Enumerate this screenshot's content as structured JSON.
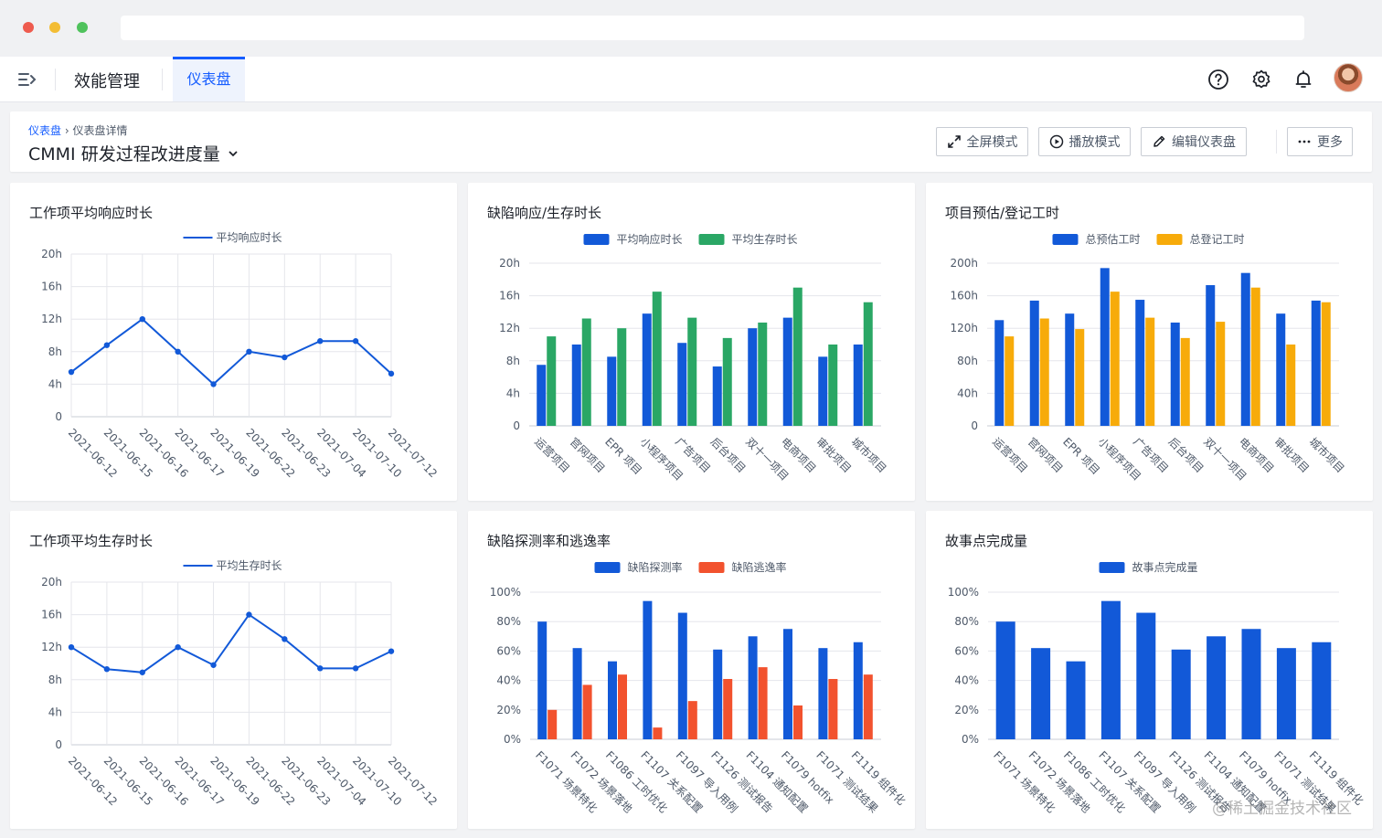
{
  "header": {
    "app_title": "效能管理",
    "active_tab": "仪表盘"
  },
  "breadcrumb": {
    "root": "仪表盘",
    "separator": "›",
    "current": "仪表盘详情"
  },
  "dashboard_title": "CMMI 研发过程改进度量",
  "toolbar": {
    "fullscreen": "全屏模式",
    "play": "播放模式",
    "edit": "编辑仪表盘",
    "more": "更多"
  },
  "colors": {
    "blue": "#1259d8",
    "green": "#2aa765",
    "orange": "#f7ab0a",
    "red": "#f2522e",
    "line": "#1259d8"
  },
  "watermark": "@稀土掘金技术社区",
  "chart_data": [
    {
      "id": "c1",
      "type": "line",
      "title": "工作项平均响应时长",
      "series": [
        {
          "name": "平均响应时长",
          "values": [
            5.5,
            8.8,
            12,
            8,
            4,
            8,
            7.3,
            9.3,
            9.3,
            5.3
          ]
        }
      ],
      "categories": [
        "2021-06-12",
        "2021-06-15",
        "2021-06-16",
        "2021-06-17",
        "2021-06-19",
        "2021-06-22",
        "2021-06-23",
        "2021-07-04",
        "2021-07-10",
        "2021-07-12"
      ],
      "yticks": [
        "0",
        "4h",
        "8h",
        "12h",
        "16h",
        "20h"
      ],
      "ylim": [
        0,
        20
      ]
    },
    {
      "id": "c2",
      "type": "bar",
      "title": "缺陷响应/生存时长",
      "series": [
        {
          "name": "平均响应时长",
          "values": [
            7.5,
            10,
            8.5,
            13.8,
            10.2,
            7.3,
            12,
            13.3,
            8.5,
            10
          ]
        },
        {
          "name": "平均生存时长",
          "values": [
            11,
            13.2,
            12,
            16.5,
            13.3,
            10.8,
            12.7,
            17,
            10,
            15.2
          ]
        }
      ],
      "categories": [
        "运营项目",
        "官网项目",
        "EPR 项目",
        "小程序项目",
        "广告项目",
        "后台项目",
        "双十一项目",
        "电商项目",
        "审批项目",
        "城市项目"
      ],
      "yticks": [
        "0",
        "4h",
        "8h",
        "12h",
        "16h",
        "20h"
      ],
      "ylim": [
        0,
        20
      ]
    },
    {
      "id": "c3",
      "type": "bar",
      "title": "项目预估/登记工时",
      "series": [
        {
          "name": "总预估工时",
          "values": [
            130,
            154,
            138,
            194,
            155,
            127,
            173,
            188,
            138,
            154
          ]
        },
        {
          "name": "总登记工时",
          "values": [
            110,
            132,
            119,
            165,
            133,
            108,
            128,
            170,
            100,
            152
          ]
        }
      ],
      "categories": [
        "运营项目",
        "官网项目",
        "EPR 项目",
        "小程序项目",
        "广告项目",
        "后台项目",
        "双十一项目",
        "电商项目",
        "审批项目",
        "城市项目"
      ],
      "yticks": [
        "0",
        "40h",
        "80h",
        "120h",
        "160h",
        "200h"
      ],
      "ylim": [
        0,
        200
      ]
    },
    {
      "id": "c4",
      "type": "line",
      "title": "工作项平均生存时长",
      "series": [
        {
          "name": "平均生存时长",
          "values": [
            12,
            9.3,
            8.9,
            12,
            9.8,
            16,
            13,
            9.4,
            9.4,
            11.5
          ]
        }
      ],
      "categories": [
        "2021-06-12",
        "2021-06-15",
        "2021-06-16",
        "2021-06-17",
        "2021-06-19",
        "2021-06-22",
        "2021-06-23",
        "2021-07-04",
        "2021-07-10",
        "2021-07-12"
      ],
      "yticks": [
        "0",
        "4h",
        "8h",
        "12h",
        "16h",
        "20h"
      ],
      "ylim": [
        0,
        20
      ]
    },
    {
      "id": "c5",
      "type": "bar",
      "title": "缺陷探测率和逃逸率",
      "series": [
        {
          "name": "缺陷探测率",
          "values": [
            80,
            62,
            53,
            94,
            86,
            61,
            70,
            75,
            62,
            66
          ]
        },
        {
          "name": "缺陷逃逸率",
          "values": [
            20,
            37,
            44,
            8,
            26,
            41,
            49,
            23,
            41,
            44
          ]
        }
      ],
      "categories": [
        "F1071 场景特化",
        "F1072 场景落地",
        "F1086 工时优化",
        "F1107 关系配置",
        "F1097 导入用例",
        "F1126 测试报告",
        "F1104 通知配置",
        "F1079 hotfix",
        "F1071 测试结果",
        "F1119 组件化"
      ],
      "yticks": [
        "0%",
        "20%",
        "40%",
        "60%",
        "80%",
        "100%"
      ],
      "ylim": [
        0,
        100
      ]
    },
    {
      "id": "c6",
      "type": "bar",
      "title": "故事点完成量",
      "series": [
        {
          "name": "故事点完成量",
          "values": [
            80,
            62,
            53,
            94,
            86,
            61,
            70,
            75,
            62,
            66
          ]
        }
      ],
      "categories": [
        "F1071 场景特化",
        "F1072 场景落地",
        "F1086 工时优化",
        "F1107 关系配置",
        "F1097 导入用例",
        "F1126 测试报告",
        "F1104 通知配置",
        "F1079 hotfix",
        "F1071 测试结果",
        "F1119 组件化"
      ],
      "yticks": [
        "0%",
        "20%",
        "40%",
        "60%",
        "80%",
        "100%"
      ],
      "ylim": [
        0,
        100
      ]
    }
  ]
}
